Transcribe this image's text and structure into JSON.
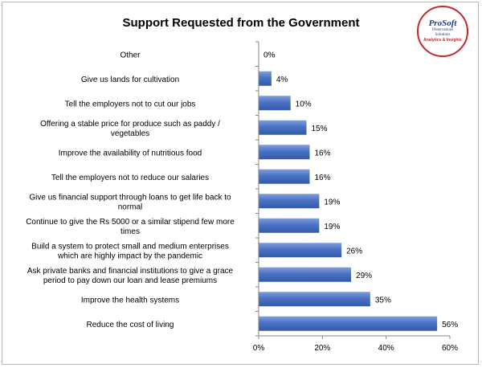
{
  "chart_data": {
    "type": "bar",
    "orientation": "horizontal",
    "title": "Support Requested from the Government",
    "categories": [
      [
        "Other"
      ],
      [
        "Give us lands for cultivation"
      ],
      [
        "Tell the employers  not to cut our jobs"
      ],
      [
        "Offering  a stable price for produce  such as paddy /",
        "vegetables"
      ],
      [
        "Improve the availability of nutritious food"
      ],
      [
        "Tell the employers  not to reduce  our salaries"
      ],
      [
        "Give us financial support through loans to get life back to",
        "normal"
      ],
      [
        "Continue to give the Rs 5000 or a similar stipend  few more",
        "times"
      ],
      [
        "Build a system to protect small and medium enterprises",
        "which are highly impact by the pandemic"
      ],
      [
        "Ask private banks and financial institutions to give a grace",
        "period to pay down our loan and lease premiums"
      ],
      [
        "Improve the health systems"
      ],
      [
        "Reduce the cost of living"
      ]
    ],
    "values": [
      0,
      4,
      10,
      15,
      16,
      16,
      19,
      19,
      26,
      29,
      35,
      56
    ],
    "value_labels": [
      "0%",
      "4%",
      "10%",
      "15%",
      "16%",
      "16%",
      "19%",
      "19%",
      "26%",
      "29%",
      "35%",
      "56%"
    ],
    "xlim": [
      0,
      60
    ],
    "x_ticks": [
      0,
      20,
      40,
      60
    ],
    "x_tick_labels": [
      "0%",
      "20%",
      "40%",
      "60%"
    ],
    "grid": false,
    "legend": "none",
    "bar_color": "#4a72c4"
  },
  "logo": {
    "name": "ProSoft",
    "line2": "Observations",
    "line3": "Solutions",
    "line4": "Analytics & Insights"
  }
}
